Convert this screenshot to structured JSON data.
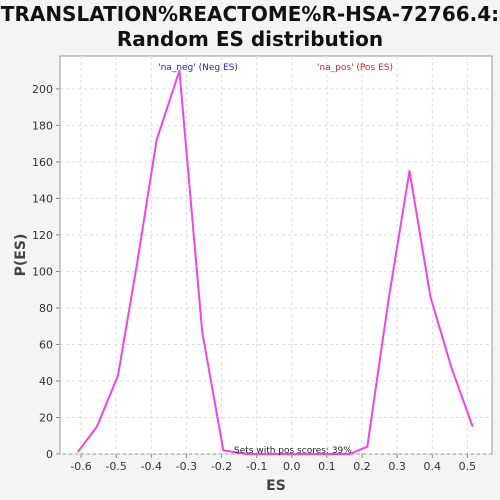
{
  "chart_data": {
    "type": "line",
    "title_line1": "TRANSLATION%REACTOME%R-HSA-72766.4:",
    "title_line2": "Random ES distribution",
    "xlabel": "ES",
    "ylabel": "P(ES)",
    "xlim": [
      -0.66,
      0.57
    ],
    "ylim": [
      0,
      218
    ],
    "x_ticks": [
      -0.6,
      -0.5,
      -0.4,
      -0.3,
      -0.2,
      -0.1,
      0.0,
      0.1,
      0.2,
      0.3,
      0.4,
      0.5
    ],
    "x_tick_labels": [
      "-0.6",
      "-0.5",
      "-0.4",
      "-0.3",
      "-0.2",
      "-0.1",
      "0.0",
      "0.1",
      "0.2",
      "0.3",
      "0.4",
      "0.5"
    ],
    "y_ticks": [
      0,
      20,
      40,
      60,
      80,
      100,
      120,
      140,
      160,
      180,
      200
    ],
    "y_tick_labels": [
      "0",
      "20",
      "40",
      "60",
      "80",
      "100",
      "120",
      "140",
      "160",
      "180",
      "200"
    ],
    "grid": true,
    "legend": [
      {
        "label": "'na_neg' (Neg ES)",
        "color": "#2222dd"
      },
      {
        "label": "'na_pos' (Pos ES)",
        "color": "#dd2222"
      }
    ],
    "annotation": "Sets with pos scores: 39%",
    "series": [
      {
        "color": "#ee44ee",
        "x": [
          -0.61,
          -0.555,
          -0.495,
          -0.44,
          -0.385,
          -0.32,
          -0.255,
          -0.195,
          -0.13,
          -0.07,
          -0.01,
          0.05,
          0.11,
          0.165,
          0.215,
          0.275,
          0.335,
          0.395,
          0.455,
          0.515
        ],
        "y": [
          1,
          15,
          43,
          105,
          172,
          210,
          67,
          2,
          0,
          0,
          0,
          0,
          0,
          0,
          4,
          84,
          155,
          86,
          47,
          15
        ]
      }
    ]
  }
}
